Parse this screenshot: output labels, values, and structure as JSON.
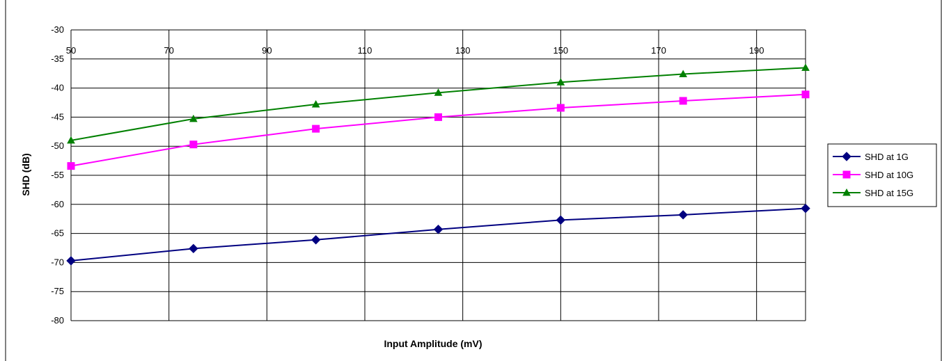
{
  "chart_data": {
    "type": "line",
    "title": "",
    "xlabel": "Input Amplitude (mV)",
    "ylabel": "SHD (dB)",
    "xlim": [
      50,
      200
    ],
    "ylim": [
      -80,
      -30
    ],
    "x_ticks": [
      "50",
      "70",
      "90",
      "110",
      "130",
      "150",
      "170",
      "190"
    ],
    "y_ticks": [
      "-30",
      "-35",
      "-40",
      "-45",
      "-50",
      "-55",
      "-60",
      "-65",
      "-70",
      "-75",
      "-80"
    ],
    "grid": true,
    "legend_position": "right",
    "x": [
      50,
      75,
      100,
      125,
      150,
      175,
      200
    ],
    "series": [
      {
        "name": "SHD at 1G",
        "color": "#000080",
        "marker": "diamond",
        "values": [
          -69.7,
          -67.6,
          -66.1,
          -64.3,
          -62.7,
          -61.8,
          -60.7
        ]
      },
      {
        "name": "SHD at 10G",
        "color": "#FF00FF",
        "marker": "square",
        "values": [
          -53.4,
          -49.7,
          -47.0,
          -45.0,
          -43.4,
          -42.2,
          -41.1
        ]
      },
      {
        "name": "SHD at 15G",
        "color": "#008000",
        "marker": "triangle",
        "values": [
          -49.0,
          -45.3,
          -42.8,
          -40.8,
          -39.0,
          -37.6,
          -36.5
        ]
      }
    ]
  }
}
